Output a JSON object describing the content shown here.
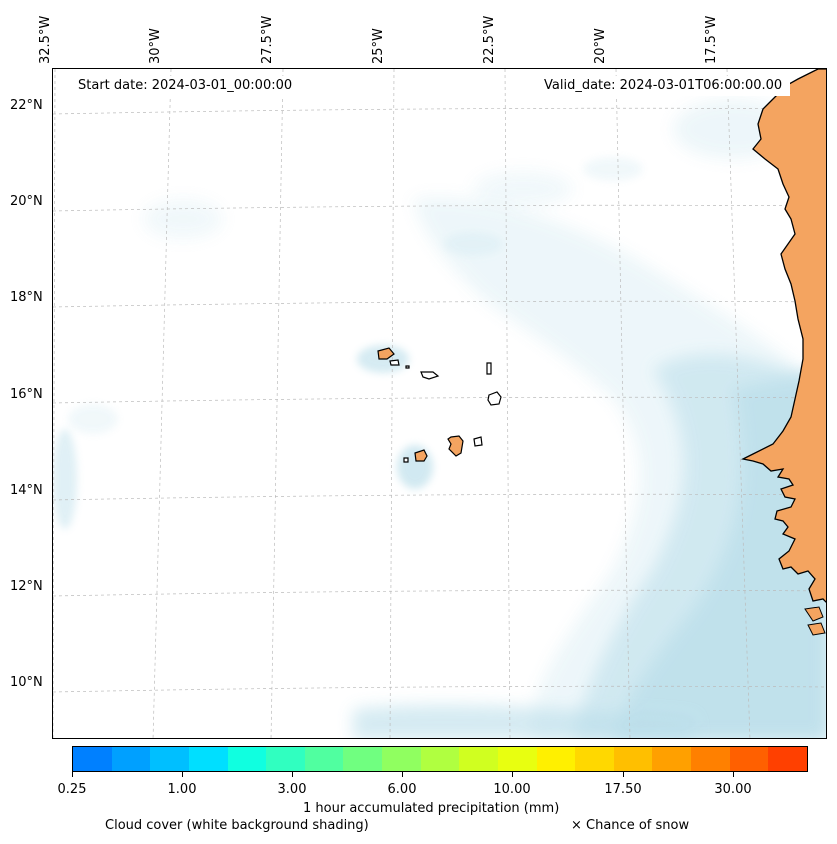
{
  "map": {
    "lon_labels": [
      "32.5°W",
      "30°W",
      "27.5°W",
      "25°W",
      "22.5°W",
      "20°W",
      "17.5°W"
    ],
    "lat_labels": [
      "22°N",
      "20°N",
      "18°N",
      "16°N",
      "14°N",
      "12°N",
      "10°N"
    ],
    "start_date": "Start date: 2024-03-01_00:00:00",
    "valid_date": "Valid_date: 2024-03-01T06:00:00.00",
    "land_color": "#f4a460",
    "cloud_color": "#add8e6"
  },
  "colorbar": {
    "label": "1 hour accumulated precipitation (mm)",
    "ticks": [
      "0.25",
      "1.00",
      "3.00",
      "6.00",
      "10.00",
      "17.50",
      "30.00"
    ],
    "colors": [
      "#0080ff",
      "#00a0ff",
      "#00bfff",
      "#00dfff",
      "#10ffe0",
      "#30ffc0",
      "#50ffa0",
      "#70ff80",
      "#90ff60",
      "#b0ff40",
      "#d0ff20",
      "#e8ff10",
      "#fff000",
      "#ffd800",
      "#ffbf00",
      "#ffa000",
      "#ff8000",
      "#ff6000",
      "#ff4000"
    ]
  },
  "legend": {
    "cloud_text": "Cloud cover (white background shading)",
    "snow_text": "× Chance of snow"
  }
}
